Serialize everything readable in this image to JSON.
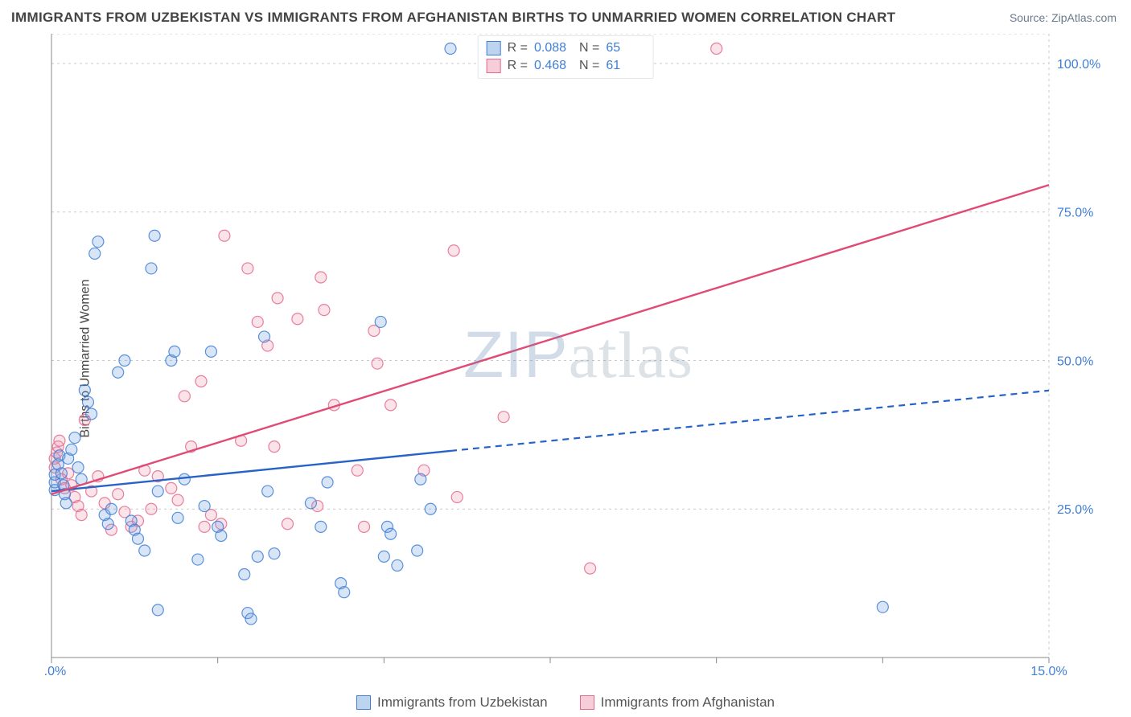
{
  "header": {
    "title": "IMMIGRANTS FROM UZBEKISTAN VS IMMIGRANTS FROM AFGHANISTAN BIRTHS TO UNMARRIED WOMEN CORRELATION CHART",
    "source": "Source: ZipAtlas.com"
  },
  "watermark": {
    "zip": "ZIP",
    "atlas": "atlas"
  },
  "y_axis_label": "Births to Unmarried Women",
  "chart": {
    "type": "scatter-with-regression",
    "xlim": [
      0,
      15
    ],
    "ylim": [
      0,
      105
    ],
    "x_ticks": [
      0,
      2.5,
      5,
      7.5,
      10,
      12.5,
      15
    ],
    "x_tick_labels_shown": {
      "0": "0.0%",
      "15": "15.0%"
    },
    "y_ticks": [
      25,
      50,
      75,
      100
    ],
    "y_tick_labels": {
      "25": "25.0%",
      "50": "50.0%",
      "75": "75.0%",
      "100": "100.0%"
    },
    "background_color": "#ffffff",
    "grid_color": "#c9c9c9",
    "axis_color": "#888888",
    "series": {
      "uzbekistan": {
        "label": "Immigrants from Uzbekistan",
        "color_fill": "#6ea3e2",
        "color_stroke": "#3f7fd6",
        "legend_swatch_border": "#3f7fd6",
        "legend_swatch_fill": "#bdd4f1",
        "r_value": "0.088",
        "n_value": "65",
        "trend": {
          "a": 28,
          "b": 1.13,
          "x_solid_end": 6.0,
          "color": "#2763c7"
        },
        "points": [
          [
            0.05,
            28.2
          ],
          [
            0.05,
            29.5
          ],
          [
            0.05,
            30.8
          ],
          [
            0.1,
            32.5
          ],
          [
            0.12,
            34.0
          ],
          [
            0.15,
            31.0
          ],
          [
            0.18,
            29.0
          ],
          [
            0.2,
            27.5
          ],
          [
            0.22,
            26.0
          ],
          [
            0.25,
            33.5
          ],
          [
            0.3,
            35.0
          ],
          [
            0.35,
            37.0
          ],
          [
            0.4,
            32.0
          ],
          [
            0.45,
            30.0
          ],
          [
            0.5,
            45.0
          ],
          [
            0.55,
            43.0
          ],
          [
            0.6,
            41.0
          ],
          [
            0.65,
            68.0
          ],
          [
            0.7,
            70.0
          ],
          [
            0.8,
            24.0
          ],
          [
            0.85,
            22.5
          ],
          [
            0.9,
            25.0
          ],
          [
            1.0,
            48.0
          ],
          [
            1.1,
            50.0
          ],
          [
            1.2,
            23.0
          ],
          [
            1.25,
            21.5
          ],
          [
            1.3,
            20.0
          ],
          [
            1.4,
            18.0
          ],
          [
            1.5,
            65.5
          ],
          [
            1.55,
            71.0
          ],
          [
            1.6,
            28.0
          ],
          [
            1.8,
            50.0
          ],
          [
            1.85,
            51.5
          ],
          [
            1.9,
            23.5
          ],
          [
            2.0,
            30.0
          ],
          [
            2.2,
            16.5
          ],
          [
            2.3,
            25.5
          ],
          [
            2.4,
            51.5
          ],
          [
            2.5,
            22.0
          ],
          [
            2.55,
            20.5
          ],
          [
            2.9,
            14.0
          ],
          [
            2.95,
            7.5
          ],
          [
            3.0,
            6.5
          ],
          [
            3.1,
            17.0
          ],
          [
            3.2,
            54.0
          ],
          [
            3.25,
            28.0
          ],
          [
            3.35,
            17.5
          ],
          [
            3.9,
            26.0
          ],
          [
            4.05,
            22.0
          ],
          [
            4.15,
            29.5
          ],
          [
            4.35,
            12.5
          ],
          [
            4.4,
            11.0
          ],
          [
            4.95,
            56.5
          ],
          [
            5.0,
            17.0
          ],
          [
            5.05,
            22.0
          ],
          [
            5.1,
            20.8
          ],
          [
            5.2,
            15.5
          ],
          [
            5.5,
            18.0
          ],
          [
            5.55,
            30.0
          ],
          [
            5.7,
            25.0
          ],
          [
            6.0,
            102.5
          ],
          [
            12.5,
            8.5
          ],
          [
            1.6,
            8.0
          ]
        ]
      },
      "afghanistan": {
        "label": "Immigrants from Afghanistan",
        "color_fill": "#f19cb3",
        "color_stroke": "#e46a8c",
        "legend_swatch_border": "#e46a8c",
        "legend_swatch_fill": "#f7cdd9",
        "r_value": "0.468",
        "n_value": "61",
        "trend": {
          "a": 27.5,
          "b": 3.47,
          "x_solid_end": 15.0,
          "color": "#e04b75"
        },
        "points": [
          [
            0.05,
            32.0
          ],
          [
            0.05,
            33.5
          ],
          [
            0.08,
            34.5
          ],
          [
            0.1,
            35.5
          ],
          [
            0.12,
            36.5
          ],
          [
            0.15,
            30.0
          ],
          [
            0.2,
            28.5
          ],
          [
            0.25,
            31.0
          ],
          [
            0.3,
            29.0
          ],
          [
            0.35,
            27.0
          ],
          [
            0.4,
            25.5
          ],
          [
            0.45,
            24.0
          ],
          [
            0.5,
            40.0
          ],
          [
            0.6,
            28.0
          ],
          [
            0.7,
            30.5
          ],
          [
            0.8,
            26.0
          ],
          [
            0.9,
            21.5
          ],
          [
            1.0,
            27.5
          ],
          [
            1.1,
            24.5
          ],
          [
            1.2,
            22.0
          ],
          [
            1.3,
            23.0
          ],
          [
            1.4,
            31.5
          ],
          [
            1.5,
            25.0
          ],
          [
            1.6,
            30.5
          ],
          [
            1.8,
            28.5
          ],
          [
            1.9,
            26.5
          ],
          [
            2.0,
            44.0
          ],
          [
            2.1,
            35.5
          ],
          [
            2.25,
            46.5
          ],
          [
            2.3,
            22.0
          ],
          [
            2.4,
            24.0
          ],
          [
            2.55,
            22.5
          ],
          [
            2.6,
            71.0
          ],
          [
            2.85,
            36.5
          ],
          [
            2.95,
            65.5
          ],
          [
            3.1,
            56.5
          ],
          [
            3.25,
            52.5
          ],
          [
            3.35,
            35.5
          ],
          [
            3.4,
            60.5
          ],
          [
            3.55,
            22.5
          ],
          [
            3.7,
            57.0
          ],
          [
            4.0,
            25.5
          ],
          [
            4.05,
            64.0
          ],
          [
            4.1,
            58.5
          ],
          [
            4.25,
            42.5
          ],
          [
            4.6,
            31.5
          ],
          [
            4.7,
            22.0
          ],
          [
            4.85,
            55.0
          ],
          [
            4.9,
            49.5
          ],
          [
            5.1,
            42.5
          ],
          [
            5.6,
            31.5
          ],
          [
            6.05,
            68.5
          ],
          [
            6.1,
            27.0
          ],
          [
            6.8,
            40.5
          ],
          [
            8.1,
            15.0
          ],
          [
            10.0,
            102.5
          ]
        ]
      }
    }
  },
  "legend_top": {
    "r_label": "R =",
    "n_label": "N ="
  }
}
